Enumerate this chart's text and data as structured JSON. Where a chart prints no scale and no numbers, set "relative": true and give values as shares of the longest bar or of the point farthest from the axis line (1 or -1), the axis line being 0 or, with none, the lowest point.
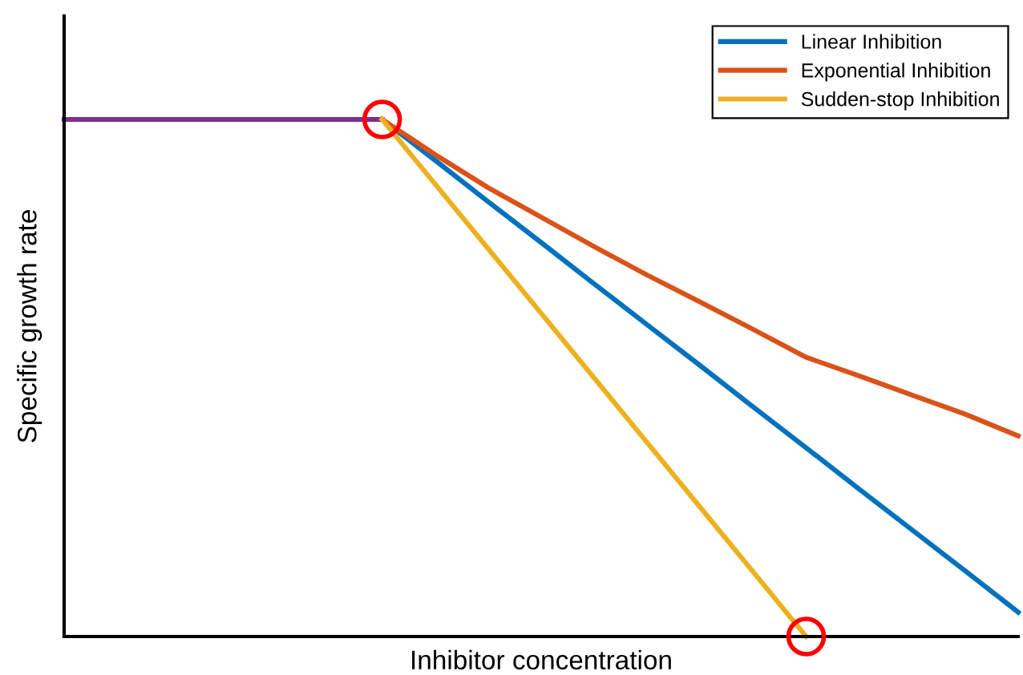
{
  "chart_data": {
    "type": "line",
    "relative": true,
    "xlabel": "Inhibitor concentration",
    "ylabel": "Specific growth rate",
    "tick_labels": false,
    "legend": "top right",
    "categories": [
      null,
      null,
      null,
      null,
      null,
      null,
      null,
      null,
      null,
      null,
      null,
      null,
      null,
      null,
      null,
      null,
      null,
      null,
      null
    ],
    "series": [
      {
        "color": "#7e2f8e",
        "values": [
          1,
          1,
          1,
          1,
          1,
          1,
          1,
          null,
          null,
          null,
          null,
          null,
          null,
          null,
          null,
          null,
          null,
          null,
          null
        ]
      },
      {
        "name": "Linear Inhibition",
        "color": "#0072bd",
        "values": [
          null,
          null,
          null,
          null,
          null,
          null,
          1,
          0.921,
          0.841,
          0.762,
          0.682,
          0.603,
          0.524,
          0.444,
          0.365,
          0.285,
          0.206,
          0.127,
          0.047
        ]
      },
      {
        "name": "Exponential Inhibition",
        "color": "#d95319",
        "values": [
          null,
          null,
          null,
          null,
          null,
          null,
          1,
          0.932,
          0.868,
          0.811,
          0.754,
          0.699,
          0.647,
          0.594,
          0.54,
          0.504,
          0.467,
          0.43,
          0.388
        ]
      },
      {
        "name": "Sudden-stop Inhibition",
        "color": "#edb120",
        "values": [
          null,
          null,
          null,
          null,
          null,
          null,
          1,
          0.875,
          0.75,
          0.625,
          0.5,
          0.375,
          0.25,
          0.125,
          0,
          null,
          null,
          null,
          null
        ]
      }
    ]
  }
}
